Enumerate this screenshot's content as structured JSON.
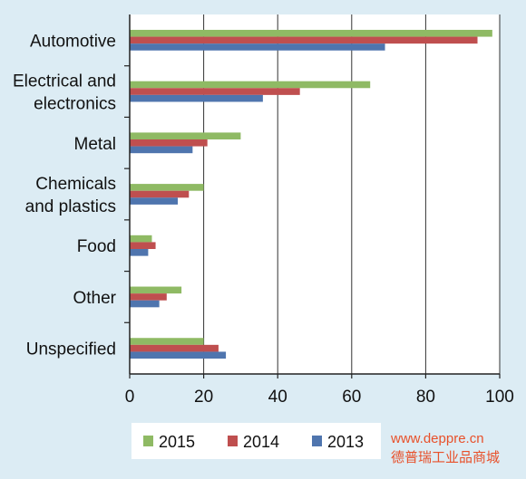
{
  "chart_data": {
    "type": "bar",
    "orientation": "horizontal",
    "categories": [
      [
        "Automotive"
      ],
      [
        "Electrical and",
        "electronics"
      ],
      [
        "Metal"
      ],
      [
        "Chemicals",
        "and plastics"
      ],
      [
        "Food"
      ],
      [
        "Other"
      ],
      [
        "Unspecified"
      ]
    ],
    "series": [
      {
        "name": "2015",
        "color": "#8fba64",
        "values": [
          98,
          65,
          30,
          20,
          6,
          14,
          20
        ]
      },
      {
        "name": "2014",
        "color": "#bf4f4f",
        "values": [
          94,
          46,
          21,
          16,
          7,
          10,
          24
        ]
      },
      {
        "name": "2013",
        "color": "#4f75ae",
        "values": [
          69,
          36,
          17,
          13,
          5,
          8,
          26
        ]
      }
    ],
    "xlim": [
      0,
      100
    ],
    "xticks": [
      "0",
      "20",
      "40",
      "60",
      "80",
      "100"
    ],
    "grid": "vertical",
    "legend_position": "bottom"
  },
  "watermark": {
    "url": "www.deppre.cn",
    "name": "德普瑞工业品商城",
    "color": "#e8502a"
  }
}
